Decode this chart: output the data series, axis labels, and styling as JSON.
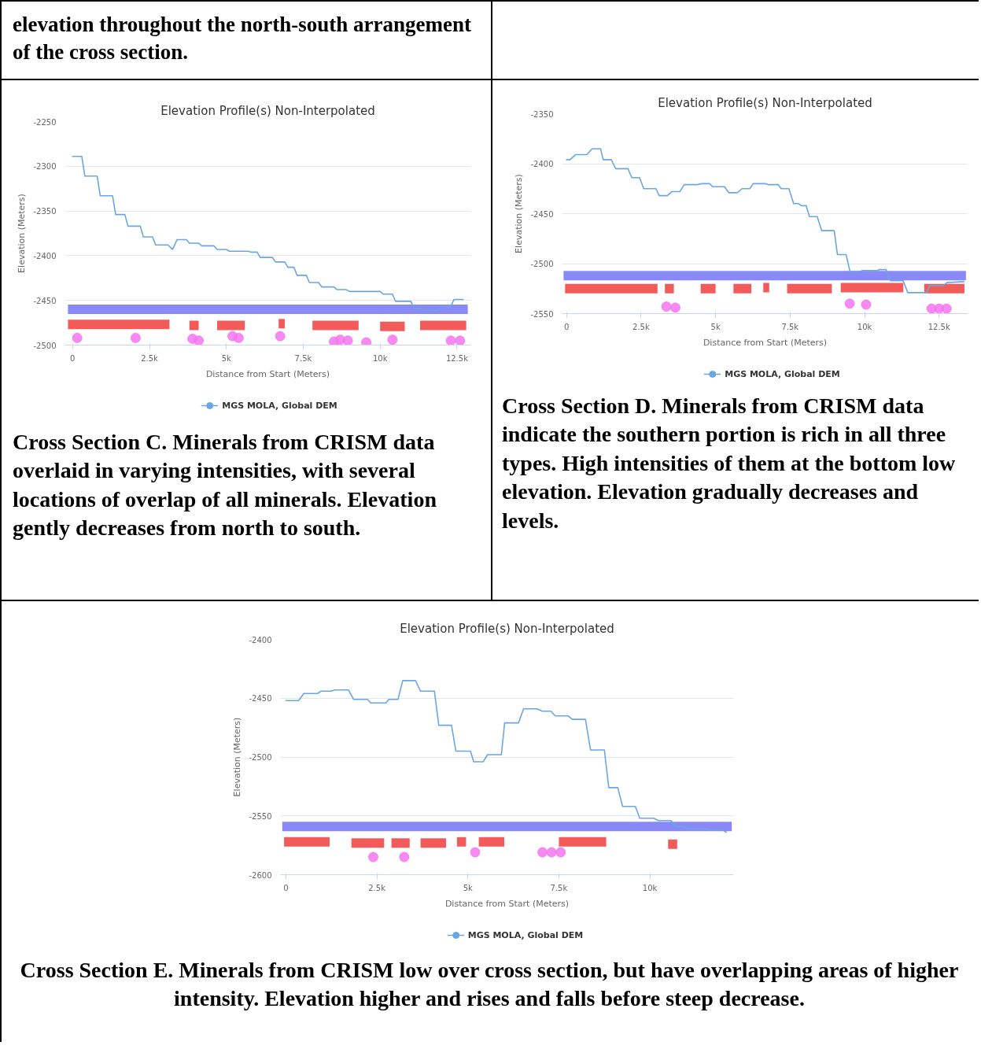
{
  "chart_data": [
    {
      "type": "line",
      "title": "Elevation Profile(s) Non-Interpolated",
      "xlabel": "Distance from Start (Meters)",
      "ylabel": "Elevation (Meters)",
      "annotations": [
        "elevation throughout the north-south arrangement of the cross section.",
        "Cross Section C. Minerals from CRISM data overlaid in varying intensities, with several locations of overlap of all minerals. Elevation gently decreases from north to south."
      ],
      "xlim": [
        -250,
        12950
      ],
      "ylim": [
        -2500,
        -2250
      ],
      "xticks": [
        0,
        {
          "value": 2500,
          "label": "2.5k"
        },
        {
          "value": 5000,
          "label": "5k"
        },
        {
          "value": 7500,
          "label": "7.5k"
        },
        {
          "value": 10000,
          "label": "10k"
        },
        {
          "value": 12500,
          "label": "12.5k"
        }
      ],
      "yticks": [
        -2250,
        -2300,
        -2350,
        -2400,
        -2450,
        -2500
      ],
      "grid": "y",
      "legend": "bottom",
      "series": [
        {
          "name": "MGS MOLA, Global DEM",
          "color": "#6aa7e0",
          "x": [
            0,
            300,
            400,
            800,
            900,
            1300,
            1400,
            1700,
            1800,
            2200,
            2300,
            2600,
            2700,
            3100,
            3250,
            3400,
            3700,
            3800,
            4100,
            4200,
            4600,
            4700,
            5000,
            5100,
            5700,
            5800,
            6000,
            6100,
            6500,
            6600,
            6900,
            7000,
            7200,
            7300,
            7600,
            7700,
            8000,
            8100,
            8500,
            8600,
            8900,
            9000,
            10000,
            10100,
            10400,
            10500,
            11000,
            11100,
            11300,
            11400,
            11900,
            12000,
            12300,
            12400,
            12700
          ],
          "values": [
            -2289,
            -2289,
            -2311,
            -2311,
            -2333,
            -2333,
            -2354,
            -2354,
            -2367,
            -2367,
            -2379,
            -2379,
            -2388,
            -2388,
            -2393,
            -2382,
            -2382,
            -2386,
            -2386,
            -2389,
            -2389,
            -2393,
            -2393,
            -2395,
            -2395,
            -2396,
            -2396,
            -2402,
            -2402,
            -2407,
            -2407,
            -2413,
            -2413,
            -2422,
            -2422,
            -2430,
            -2430,
            -2435,
            -2435,
            -2438,
            -2438,
            -2440,
            -2440,
            -2443,
            -2443,
            -2451,
            -2451,
            -2459,
            -2459,
            -2461,
            -2461,
            -2457,
            -2457,
            -2449,
            -2449
          ]
        },
        {
          "color": "#7b7cf5",
          "x": [
            -150,
            12850
          ],
          "values": [
            -2460,
            -2460
          ]
        },
        {
          "color": "#f24848",
          "x": [
            -150,
            3150,
            null,
            3800,
            4100,
            null,
            4700,
            5600,
            null,
            6700,
            6900,
            null,
            7800,
            9300,
            null,
            10000,
            10800,
            null,
            11300,
            12800
          ],
          "values": [
            -2477,
            -2477,
            null,
            -2478,
            -2478,
            null,
            -2478,
            -2478,
            null,
            -2476,
            -2476,
            null,
            -2478,
            -2478,
            null,
            -2479,
            -2479,
            null,
            -2478,
            -2478
          ]
        },
        {
          "type": "scatter",
          "marker": "circle",
          "color": "#f575f0",
          "x": [
            150,
            2050,
            3900,
            4100,
            5200,
            5400,
            6750,
            8500,
            8700,
            8950,
            9550,
            10400,
            12300,
            12600
          ],
          "values": [
            -2492,
            -2492,
            -2493,
            -2495,
            -2490,
            -2492,
            -2490,
            -2496,
            -2494,
            -2495,
            -2497,
            -2494,
            -2495,
            -2495
          ]
        }
      ]
    },
    {
      "type": "line",
      "title": "Elevation Profile(s) Non-Interpolated",
      "xlabel": "Distance from Start (Meters)",
      "ylabel": "Elevation (Meters)",
      "annotations": [
        "Cross Section D. Minerals from CRISM data indicate the southern portion is rich in all three types. High intensities of them at the bottom low elevation. Elevation gradually decreases and levels."
      ],
      "xlim": [
        -150,
        13470
      ],
      "ylim": [
        -2550,
        -2350
      ],
      "xticks": [
        0,
        {
          "value": 2500,
          "label": "2.5k"
        },
        {
          "value": 5000,
          "label": "5k"
        },
        {
          "value": 7500,
          "label": "7.5k"
        },
        {
          "value": 10000,
          "label": "10k"
        },
        {
          "value": 12500,
          "label": "12.5k"
        }
      ],
      "yticks": [
        -2350,
        -2400,
        -2450,
        -2500,
        -2550
      ],
      "grid": "y",
      "legend": "bottom",
      "series": [
        {
          "name": "MGS MOLA, Global DEM",
          "color": "#6aa7e0",
          "x": [
            0,
            120,
            300,
            680,
            860,
            1140,
            1230,
            1500,
            1650,
            2060,
            2190,
            2450,
            2590,
            3000,
            3110,
            3380,
            3530,
            3800,
            3950,
            4370,
            4530,
            4800,
            4900,
            5300,
            5440,
            5730,
            5890,
            6150,
            6260,
            6680,
            6780,
            7100,
            7200,
            7460,
            7620,
            7780,
            7880,
            8040,
            8150,
            8410,
            8560,
            8980,
            9090,
            9380,
            9510,
            9820,
            9930,
            10400,
            10500,
            10720,
            10870,
            11290,
            11450,
            12080,
            12180,
            12650,
            12760,
            13330
          ],
          "values": [
            -2396,
            -2396,
            -2391,
            -2391,
            -2385,
            -2385,
            -2396,
            -2396,
            -2405,
            -2405,
            -2414,
            -2414,
            -2425,
            -2425,
            -2432,
            -2432,
            -2428,
            -2428,
            -2421,
            -2421,
            -2420,
            -2420,
            -2423,
            -2423,
            -2429,
            -2429,
            -2425,
            -2425,
            -2420,
            -2420,
            -2421,
            -2421,
            -2425,
            -2425,
            -2440,
            -2440,
            -2442,
            -2442,
            -2453,
            -2453,
            -2467,
            -2467,
            -2491,
            -2491,
            -2508,
            -2508,
            -2507,
            -2507,
            -2506,
            -2506,
            -2517,
            -2517,
            -2529,
            -2529,
            -2522,
            -2522,
            -2519,
            -2518
          ]
        },
        {
          "color": "#7b7cf5",
          "x": [
            -100,
            13400
          ],
          "values": [
            -2512,
            -2512
          ]
        },
        {
          "color": "#f24848",
          "x": [
            -50,
            3050,
            null,
            3300,
            3600,
            null,
            4500,
            5000,
            null,
            5600,
            6200,
            null,
            6600,
            6800,
            null,
            7400,
            8900,
            null,
            9200,
            11300,
            null,
            12000,
            13350
          ],
          "values": [
            -2525,
            -2525,
            null,
            -2525,
            -2525,
            null,
            -2525,
            -2525,
            null,
            -2525,
            -2525,
            null,
            -2524,
            -2524,
            null,
            -2525,
            -2525,
            null,
            -2524,
            -2524,
            null,
            -2525,
            -2525
          ]
        },
        {
          "type": "scatter",
          "marker": "circle",
          "color": "#f575f0",
          "x": [
            3350,
            3650,
            9500,
            10050,
            12250,
            12500,
            12750
          ],
          "values": [
            -2543,
            -2544,
            -2540,
            -2541,
            -2545,
            -2545,
            -2545
          ]
        }
      ]
    },
    {
      "type": "line",
      "title": "Elevation Profile(s) Non-Interpolated",
      "xlabel": "Distance from Start (Meters)",
      "ylabel": "Elevation (Meters)",
      "annotations": [
        "Cross Section E. Minerals from CRISM low over cross section, but have overlapping areas of higher intensity. Elevation higher and rises and falls before steep decrease."
      ],
      "xlim": [
        -150,
        12300
      ],
      "ylim": [
        -2600,
        -2400
      ],
      "xticks": [
        0,
        {
          "value": 2500,
          "label": "2.5k"
        },
        {
          "value": 5000,
          "label": "5k"
        },
        {
          "value": 7500,
          "label": "7.5k"
        },
        {
          "value": 10000,
          "label": "10k"
        }
      ],
      "yticks": [
        -2400,
        -2450,
        -2500,
        -2550,
        -2600
      ],
      "grid": "y",
      "legend": "bottom",
      "series": [
        {
          "name": "MGS MOLA, Global DEM",
          "color": "#6aa7e0",
          "x": [
            0,
            350,
            490,
            870,
            960,
            1250,
            1340,
            1720,
            1860,
            2240,
            2330,
            2750,
            2830,
            3080,
            3210,
            3560,
            3700,
            4080,
            4200,
            4550,
            4670,
            5070,
            5160,
            5420,
            5540,
            5920,
            6010,
            6390,
            6530,
            6900,
            7050,
            7280,
            7400,
            7750,
            7870,
            8230,
            8370,
            8750,
            8870,
            9120,
            9250,
            9600,
            9720,
            10110,
            10230,
            10580,
            10700,
            10920,
            11060,
            11530,
            11640,
            12000,
            12100
          ],
          "values": [
            -2452,
            -2452,
            -2446,
            -2446,
            -2444,
            -2444,
            -2443,
            -2443,
            -2451,
            -2451,
            -2454,
            -2454,
            -2451,
            -2451,
            -2435,
            -2435,
            -2444,
            -2444,
            -2473,
            -2473,
            -2495,
            -2495,
            -2504,
            -2504,
            -2498,
            -2498,
            -2471,
            -2471,
            -2459,
            -2459,
            -2461,
            -2461,
            -2465,
            -2465,
            -2468,
            -2468,
            -2494,
            -2494,
            -2526,
            -2526,
            -2542,
            -2542,
            -2552,
            -2552,
            -2554,
            -2554,
            -2559,
            -2559,
            -2561,
            -2561,
            -2562,
            -2562,
            -2564
          ]
        },
        {
          "color": "#7b7cf5",
          "x": [
            -100,
            12250
          ],
          "values": [
            -2559,
            -2559
          ]
        },
        {
          "color": "#f24848",
          "x": [
            -50,
            1200,
            null,
            1800,
            2700,
            null,
            2900,
            3400,
            null,
            3700,
            4400,
            null,
            4700,
            4950,
            null,
            5300,
            6000,
            null,
            7500,
            8800,
            null,
            10500,
            10750
          ],
          "values": [
            -2572,
            -2572,
            null,
            -2573,
            -2573,
            null,
            -2573,
            -2573,
            null,
            -2573,
            -2573,
            null,
            -2572,
            -2572,
            null,
            -2572,
            -2572,
            null,
            -2572,
            -2572,
            null,
            -2574,
            -2574
          ]
        },
        {
          "type": "scatter",
          "marker": "circle",
          "color": "#f575f0",
          "x": [
            2400,
            3250,
            5200,
            7050,
            7300,
            7550
          ],
          "values": [
            -2585,
            -2585,
            -2581,
            -2581,
            -2581,
            -2581
          ]
        }
      ]
    }
  ]
}
